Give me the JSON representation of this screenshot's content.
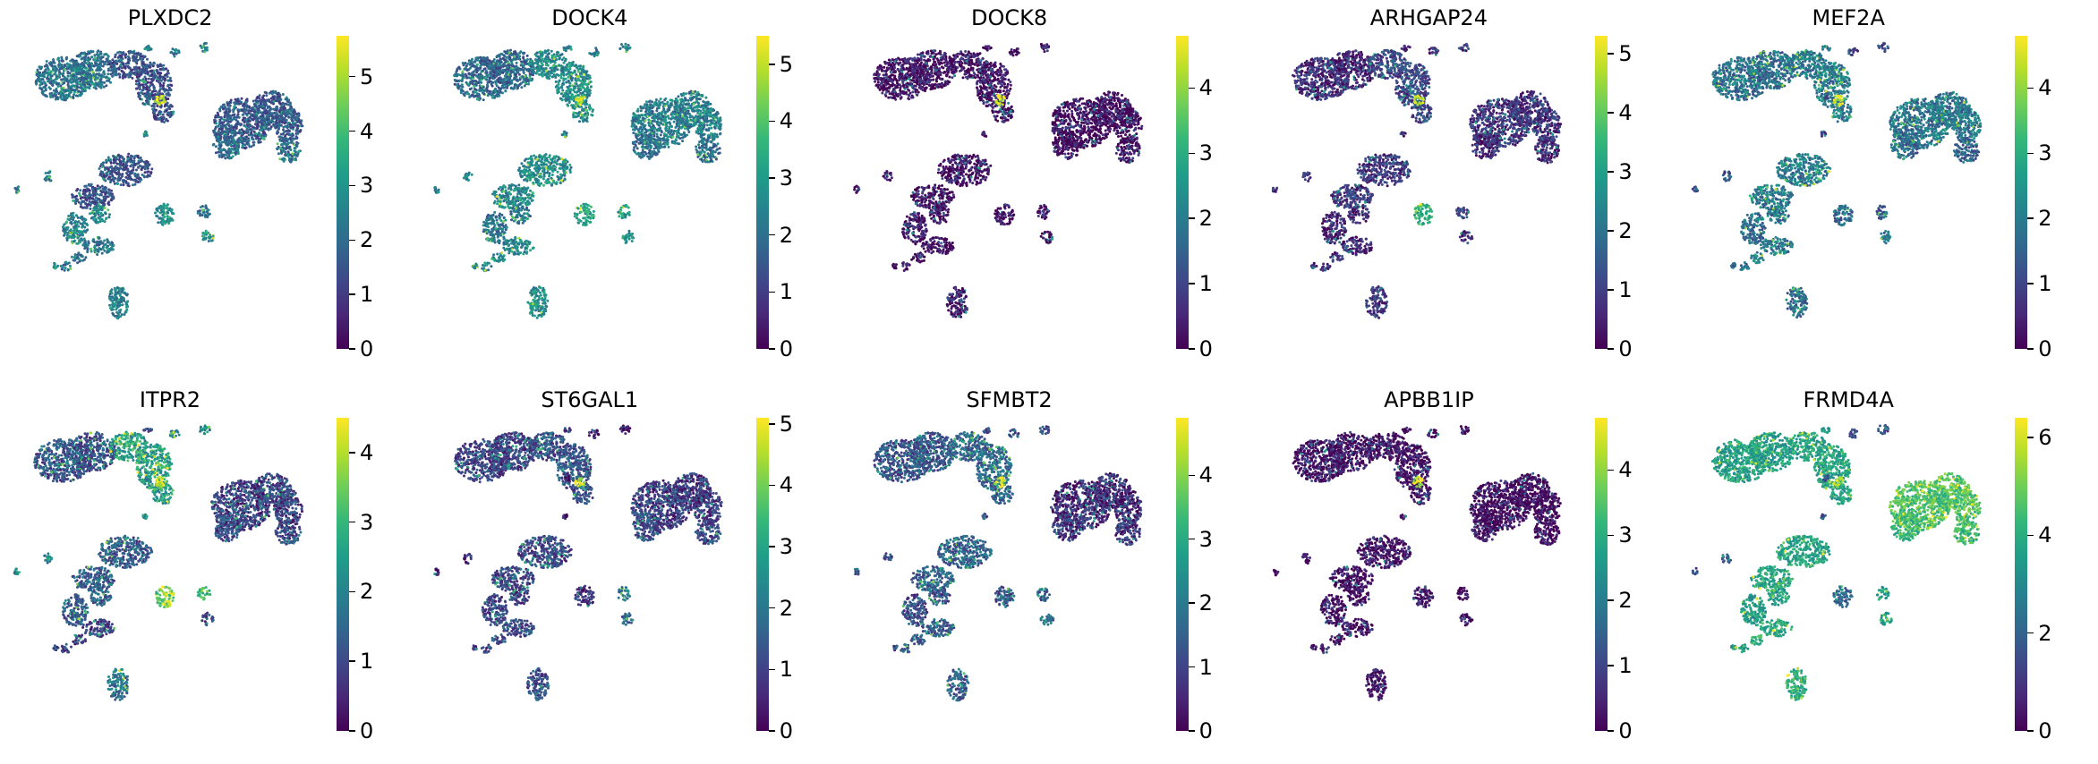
{
  "chart_data": [
    {
      "type": "scatter",
      "title": "PLXDC2",
      "colorbar": {
        "label": "",
        "range": [
          0,
          5.75
        ],
        "ticks": [
          0,
          1,
          2,
          3,
          4,
          5
        ]
      },
      "colormap": "viridis",
      "expression": {
        "c0": 2.2,
        "c1": 1.4,
        "c2": 1.6,
        "c3": 2.0,
        "c4": 1.5,
        "c5": 2.6,
        "c6": 2.2,
        "c7": 2.8,
        "c8": 5.3,
        "c9": 2.3,
        "c10": 2.5,
        "c11": 2.7,
        "c12": 2.2,
        "c13": 2.4
      }
    },
    {
      "type": "scatter",
      "title": "DOCK4",
      "colorbar": {
        "label": "",
        "range": [
          0,
          5.5
        ],
        "ticks": [
          0,
          1,
          2,
          3,
          4,
          5
        ]
      },
      "colormap": "viridis",
      "expression": {
        "c0": 1.8,
        "c1": 2.6,
        "c2": 2.3,
        "c3": 2.0,
        "c4": 2.6,
        "c5": 2.2,
        "c6": 2.5,
        "c7": 3.2,
        "c8": 4.9,
        "c9": 2.4,
        "c10": 2.6,
        "c11": 2.8,
        "c12": 3.0,
        "c13": 2.7
      }
    },
    {
      "type": "scatter",
      "title": "DOCK8",
      "colorbar": {
        "label": "",
        "range": [
          0,
          4.8
        ],
        "ticks": [
          0,
          1,
          2,
          3,
          4
        ]
      },
      "colormap": "viridis",
      "expression": {
        "c0": 0.2,
        "c1": 0.2,
        "c2": 0.1,
        "c3": 0.15,
        "c4": 0.2,
        "c5": 0.2,
        "c6": 0.1,
        "c7": 0.2,
        "c8": 4.5,
        "c9": 0.1,
        "c10": 0.2,
        "c11": 0.2,
        "c12": 0.2,
        "c13": 0.3
      }
    },
    {
      "type": "scatter",
      "title": "ARHGAP24",
      "colorbar": {
        "label": "",
        "range": [
          0,
          5.3
        ],
        "ticks": [
          0,
          1,
          2,
          3,
          4,
          5
        ]
      },
      "colormap": "viridis",
      "expression": {
        "c0": 0.6,
        "c1": 1.2,
        "c2": 0.8,
        "c3": 0.6,
        "c4": 0.9,
        "c5": 0.5,
        "c6": 0.7,
        "c7": 3.4,
        "c8": 4.8,
        "c9": 0.8,
        "c10": 0.6,
        "c11": 0.9,
        "c12": 1.1,
        "c13": 1.0
      }
    },
    {
      "type": "scatter",
      "title": "MEF2A",
      "colorbar": {
        "label": "",
        "range": [
          0,
          4.8
        ],
        "ticks": [
          0,
          1,
          2,
          3,
          4
        ]
      },
      "colormap": "viridis",
      "expression": {
        "c0": 1.8,
        "c1": 2.0,
        "c2": 1.9,
        "c3": 1.6,
        "c4": 2.0,
        "c5": 1.8,
        "c6": 1.9,
        "c7": 1.7,
        "c8": 4.4,
        "c9": 1.2,
        "c10": 1.7,
        "c11": 1.9,
        "c12": 1.5,
        "c13": 1.8
      }
    },
    {
      "type": "scatter",
      "title": "ITPR2",
      "colorbar": {
        "label": "",
        "range": [
          0,
          4.5
        ],
        "ticks": [
          0,
          1,
          2,
          3,
          4
        ]
      },
      "colormap": "viridis",
      "expression": {
        "c0": 1.2,
        "c1": 2.6,
        "c2": 0.9,
        "c3": 1.0,
        "c4": 1.3,
        "c5": 1.4,
        "c6": 0.9,
        "c7": 3.6,
        "c8": 4.3,
        "c9": 2.2,
        "c10": 0.9,
        "c11": 1.1,
        "c12": 3.0,
        "c13": 1.8
      }
    },
    {
      "type": "scatter",
      "title": "ST6GAL1",
      "colorbar": {
        "label": "",
        "range": [
          0,
          5.1
        ],
        "ticks": [
          0,
          1,
          2,
          3,
          4,
          5
        ]
      },
      "colormap": "viridis",
      "expression": {
        "c0": 1.0,
        "c1": 1.3,
        "c2": 0.9,
        "c3": 1.2,
        "c4": 1.1,
        "c5": 1.0,
        "c6": 1.2,
        "c7": 0.8,
        "c8": 4.6,
        "c9": 0.4,
        "c10": 1.0,
        "c11": 1.5,
        "c12": 2.0,
        "c13": 1.2
      }
    },
    {
      "type": "scatter",
      "title": "SFMBT2",
      "colorbar": {
        "label": "",
        "range": [
          0,
          4.9
        ],
        "ticks": [
          0,
          1,
          2,
          3,
          4
        ]
      },
      "colormap": "viridis",
      "expression": {
        "c0": 1.3,
        "c1": 1.7,
        "c2": 0.6,
        "c3": 0.8,
        "c4": 1.6,
        "c5": 1.2,
        "c6": 1.5,
        "c7": 1.4,
        "c8": 4.6,
        "c9": 1.3,
        "c10": 1.1,
        "c11": 1.8,
        "c12": 1.6,
        "c13": 1.4
      }
    },
    {
      "type": "scatter",
      "title": "APBB1IP",
      "colorbar": {
        "label": "",
        "range": [
          0,
          4.8
        ],
        "ticks": [
          0,
          1,
          2,
          3,
          4
        ]
      },
      "colormap": "viridis",
      "expression": {
        "c0": 0.2,
        "c1": 0.2,
        "c2": 0.1,
        "c3": 0.1,
        "c4": 0.2,
        "c5": 0.2,
        "c6": 0.1,
        "c7": 0.2,
        "c8": 4.4,
        "c9": 0.1,
        "c10": 0.2,
        "c11": 0.2,
        "c12": 0.2,
        "c13": 0.2
      }
    },
    {
      "type": "scatter",
      "title": "FRMD4A",
      "colorbar": {
        "label": "",
        "range": [
          0,
          6.4
        ],
        "ticks": [
          0,
          2,
          4,
          6
        ]
      },
      "colormap": "viridis",
      "expression": {
        "c0": 3.6,
        "c1": 3.7,
        "c2": 4.6,
        "c3": 4.3,
        "c4": 3.8,
        "c5": 3.5,
        "c6": 3.9,
        "c7": 2.1,
        "c8": 5.6,
        "c9": 1.6,
        "c10": 3.4,
        "c11": 3.7,
        "c12": 3.5,
        "c13": 4.0
      }
    }
  ],
  "colors": {
    "viridis_low": "#440154",
    "viridis_high": "#fde725"
  }
}
